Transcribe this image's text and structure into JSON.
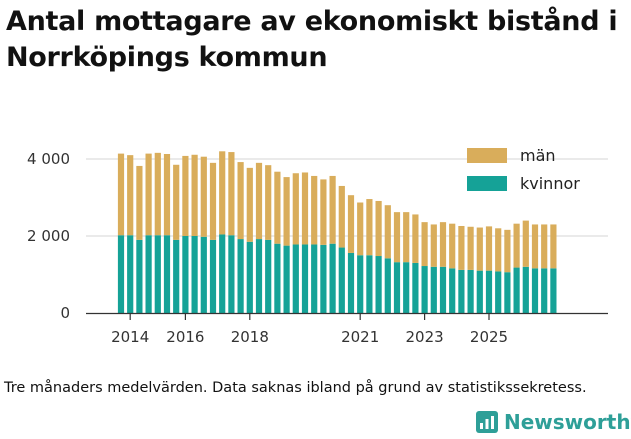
{
  "header": {
    "title": "Antal mottagare av ekonomiskt bistånd i Norrköpings kommun"
  },
  "footer": {
    "note": "Tre månaders medelvärden. Data saknas ibland på grund av statistikssekretess.",
    "brand": "Newsworthy"
  },
  "colors": {
    "man": "#d9ad5b",
    "kvinnor": "#15a297",
    "grid": "#dddddd",
    "axis": "#333333",
    "brand": "#2e9f98"
  },
  "chart_data": {
    "type": "bar",
    "stacked": true,
    "title": "Antal mottagare av ekonomiskt bistånd i Norrköpings kommun",
    "xlabel": "",
    "ylabel": "",
    "ylim": [
      0,
      4300
    ],
    "yticks": [
      0,
      2000,
      4000
    ],
    "ytick_labels": [
      "0",
      "2 000",
      "4 000"
    ],
    "xticks": [
      {
        "label": "2014",
        "index": 1
      },
      {
        "label": "2016",
        "index": 7
      },
      {
        "label": "2018",
        "index": 14
      },
      {
        "label": "2021",
        "index": 26
      },
      {
        "label": "2023",
        "index": 33
      },
      {
        "label": "2025",
        "index": 40
      }
    ],
    "legend": {
      "position": "top-right"
    },
    "x": [
      "2014-05",
      "2014-08",
      "2014-11",
      "2015-02",
      "2015-05",
      "2015-08",
      "2015-11",
      "2016-02",
      "2016-05",
      "2016-08",
      "2016-11",
      "2017-02",
      "2017-05",
      "2017-08",
      "2017-11",
      "2018-02",
      "2018-05",
      "2018-08",
      "2018-11",
      "2019-02",
      "2019-05",
      "2019-08",
      "2019-11",
      "2020-02",
      "2020-05",
      "2020-08",
      "2020-11",
      "2021-02",
      "2021-05",
      "2021-08",
      "2021-11",
      "2022-02",
      "2022-05",
      "2022-08",
      "2022-11",
      "2023-02",
      "2023-05",
      "2023-08",
      "2023-11",
      "2024-02",
      "2024-05",
      "2024-08",
      "2024-11",
      "2025-02",
      "2025-05",
      "2025-08",
      "2025-11",
      "2026-02"
    ],
    "series": [
      {
        "name": "kvinnor",
        "color": "#15a297",
        "values": [
          2020,
          2020,
          1900,
          2020,
          2020,
          2020,
          1900,
          2000,
          2000,
          1980,
          1900,
          2040,
          2020,
          1920,
          1850,
          1920,
          1900,
          1800,
          1750,
          1780,
          1780,
          1780,
          1770,
          1800,
          1700,
          1560,
          1500,
          1500,
          1480,
          1420,
          1320,
          1320,
          1300,
          1220,
          1200,
          1200,
          1160,
          1120,
          1120,
          1100,
          1100,
          1080,
          1060,
          1180,
          1200,
          1160,
          1160,
          1160
        ]
      },
      {
        "name": "män",
        "color": "#d9ad5b",
        "values": [
          2120,
          2080,
          1920,
          2120,
          2140,
          2110,
          1950,
          2080,
          2110,
          2080,
          2000,
          2160,
          2160,
          2000,
          1920,
          1980,
          1940,
          1870,
          1780,
          1850,
          1870,
          1780,
          1700,
          1760,
          1600,
          1500,
          1370,
          1460,
          1430,
          1380,
          1300,
          1300,
          1260,
          1140,
          1100,
          1160,
          1160,
          1140,
          1120,
          1120,
          1150,
          1120,
          1100,
          1140,
          1200,
          1140,
          1140,
          1140
        ]
      }
    ]
  }
}
